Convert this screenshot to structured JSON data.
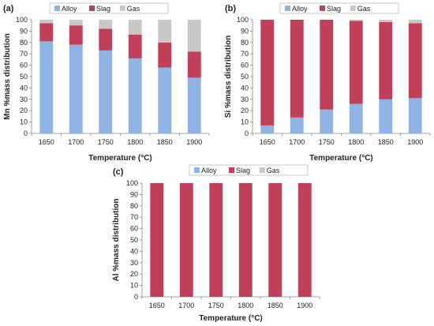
{
  "chart_data": [
    {
      "type": "bar",
      "stacked": true,
      "panel_label": "(a)",
      "categories": [
        "1650",
        "1700",
        "1750",
        "1800",
        "1850",
        "1900"
      ],
      "series": [
        {
          "name": "Alloy",
          "values": [
            81,
            78,
            73,
            66,
            58,
            49
          ]
        },
        {
          "name": "Slag",
          "values": [
            16,
            17,
            19,
            21,
            22,
            23
          ]
        },
        {
          "name": "Gas",
          "values": [
            3,
            5,
            8,
            13,
            20,
            28
          ]
        }
      ],
      "xlabel": "Temperature (°C)",
      "ylabel": "Mn %mass distribution",
      "ylim": [
        0,
        100
      ],
      "yticks": [
        "0",
        "10",
        "20",
        "30",
        "40",
        "50",
        "60",
        "70",
        "80",
        "90",
        "100"
      ],
      "grid": false,
      "legend": "top"
    },
    {
      "type": "bar",
      "stacked": true,
      "panel_label": "(b)",
      "categories": [
        "1650",
        "1700",
        "1750",
        "1800",
        "1850",
        "1900"
      ],
      "series": [
        {
          "name": "Alloy",
          "values": [
            7,
            14,
            21,
            26,
            30,
            31
          ]
        },
        {
          "name": "Slag",
          "values": [
            93,
            86,
            79,
            73,
            68,
            66
          ]
        },
        {
          "name": "Gas",
          "values": [
            0,
            0,
            0,
            1,
            2,
            3
          ]
        }
      ],
      "xlabel": "Temperature (°C)",
      "ylabel": "Si %mass distribution",
      "ylim": [
        0,
        100
      ],
      "yticks": [
        "0",
        "10",
        "20",
        "30",
        "40",
        "50",
        "60",
        "70",
        "80",
        "90",
        "100"
      ],
      "grid": false,
      "legend": "top"
    },
    {
      "type": "bar",
      "stacked": true,
      "panel_label": "(c)",
      "categories": [
        "1650",
        "1700",
        "1750",
        "1800",
        "1850",
        "1900"
      ],
      "series": [
        {
          "name": "Alloy",
          "values": [
            0,
            0,
            0,
            0,
            0,
            0
          ]
        },
        {
          "name": "Slag",
          "values": [
            100,
            100,
            100,
            100,
            100,
            100
          ]
        },
        {
          "name": "Gas",
          "values": [
            0,
            0,
            0,
            0,
            0,
            0
          ]
        }
      ],
      "xlabel": "Temperature (°C)",
      "ylabel": "Al %mass distribution",
      "ylim": [
        0,
        100
      ],
      "yticks": [
        "0",
        "10",
        "20",
        "30",
        "40",
        "50",
        "60",
        "70",
        "80",
        "90",
        "100"
      ],
      "grid": false,
      "legend": "top"
    }
  ],
  "colors": {
    "Alloy": "#8fb4e3",
    "Slag": "#c0405a",
    "Gas": "#c8c8c8",
    "axis": "#888888",
    "text": "#222222"
  }
}
